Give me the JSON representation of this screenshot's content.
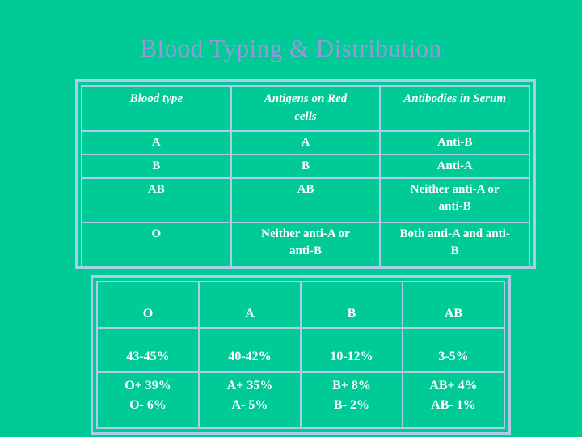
{
  "slide": {
    "title": "Blood Typing & Distribution",
    "colors": {
      "background": "#00CA95",
      "title_text": "#9798DC",
      "table_border": "#AECBE8",
      "table_text": "#FFFFFF"
    }
  },
  "typing_table": {
    "headers": [
      "Blood type",
      "Antigens on Red cells",
      "Antibodies in Serum"
    ],
    "rows": [
      [
        "A",
        "A",
        "Anti-B"
      ],
      [
        "B",
        "B",
        "Anti-A"
      ],
      [
        "AB",
        "AB",
        "Neither anti-A or anti-B"
      ],
      [
        "O",
        "Neither anti-A or anti-B",
        "Both anti-A and anti-B"
      ]
    ]
  },
  "distribution_table": {
    "headers": [
      "O",
      "A",
      "B",
      "AB"
    ],
    "total_row": [
      "43-45%",
      "40-42%",
      "10-12%",
      "3-5%"
    ],
    "breakdown_row": [
      [
        "O+ 39%",
        "O- 6%"
      ],
      [
        "A+ 35%",
        "A- 5%"
      ],
      [
        "B+ 8%",
        "B- 2%"
      ],
      [
        "AB+ 4%",
        "AB- 1%"
      ]
    ]
  }
}
